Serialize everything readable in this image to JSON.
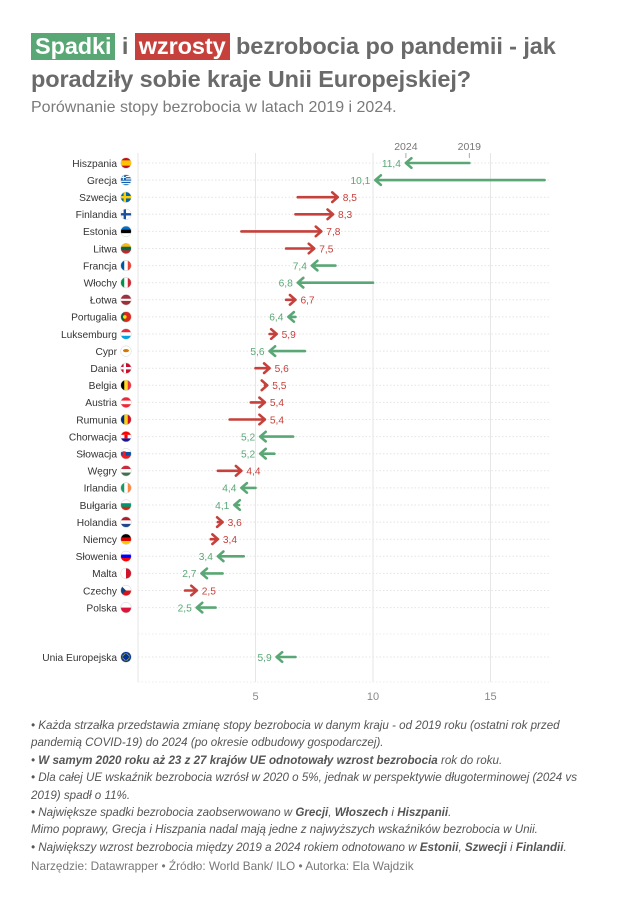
{
  "title": {
    "word_decrease": "Spadki",
    "connector": " i ",
    "word_increase": "wzrosty",
    "rest": " bezrobocia po pandemii - jak poradziły sobie kraje Unii Europejskiej?"
  },
  "subtitle": "Porównanie stopy bezrobocia w latach 2019 i 2024.",
  "colors": {
    "decrease": "#5aa776",
    "increase": "#c6413b",
    "text_gray": "#6a6a6a"
  },
  "chart_data": {
    "type": "arrow",
    "legend": {
      "start_label": "2019",
      "end_label": "2024"
    },
    "x_ticks": [
      5,
      10,
      15
    ],
    "xlim": [
      0,
      17.5
    ],
    "countries": [
      {
        "name": "Hiszpania",
        "flag": "ES",
        "v2019": 14.1,
        "v2024": 11.4,
        "label": "11,4"
      },
      {
        "name": "Grecja",
        "flag": "GR",
        "v2019": 17.3,
        "v2024": 10.1,
        "label": "10,1"
      },
      {
        "name": "Szwecja",
        "flag": "SE",
        "v2019": 6.8,
        "v2024": 8.5,
        "label": "8,5"
      },
      {
        "name": "Finlandia",
        "flag": "FI",
        "v2019": 6.7,
        "v2024": 8.3,
        "label": "8,3"
      },
      {
        "name": "Estonia",
        "flag": "EE",
        "v2019": 4.4,
        "v2024": 7.8,
        "label": "7,8"
      },
      {
        "name": "Litwa",
        "flag": "LT",
        "v2019": 6.3,
        "v2024": 7.5,
        "label": "7,5"
      },
      {
        "name": "Francja",
        "flag": "FR",
        "v2019": 8.4,
        "v2024": 7.4,
        "label": "7,4"
      },
      {
        "name": "Włochy",
        "flag": "IT",
        "v2019": 10.0,
        "v2024": 6.8,
        "label": "6,8"
      },
      {
        "name": "Łotwa",
        "flag": "LV",
        "v2019": 6.3,
        "v2024": 6.7,
        "label": "6,7"
      },
      {
        "name": "Portugalia",
        "flag": "PT",
        "v2019": 6.7,
        "v2024": 6.4,
        "label": "6,4"
      },
      {
        "name": "Luksemburg",
        "flag": "LU",
        "v2019": 5.6,
        "v2024": 5.9,
        "label": "5,9"
      },
      {
        "name": "Cypr",
        "flag": "CY",
        "v2019": 7.1,
        "v2024": 5.6,
        "label": "5,6"
      },
      {
        "name": "Dania",
        "flag": "DK",
        "v2019": 5.0,
        "v2024": 5.6,
        "label": "5,6"
      },
      {
        "name": "Belgia",
        "flag": "BE",
        "v2019": 5.4,
        "v2024": 5.5,
        "label": "5,5"
      },
      {
        "name": "Austria",
        "flag": "AT",
        "v2019": 4.8,
        "v2024": 5.4,
        "label": "5,4"
      },
      {
        "name": "Rumunia",
        "flag": "RO",
        "v2019": 3.9,
        "v2024": 5.4,
        "label": "5,4"
      },
      {
        "name": "Chorwacja",
        "flag": "HR",
        "v2019": 6.6,
        "v2024": 5.2,
        "label": "5,2"
      },
      {
        "name": "Słowacja",
        "flag": "SK",
        "v2019": 5.8,
        "v2024": 5.2,
        "label": "5,2"
      },
      {
        "name": "Węgry",
        "flag": "HU",
        "v2019": 3.4,
        "v2024": 4.4,
        "label": "4,4"
      },
      {
        "name": "Irlandia",
        "flag": "IE",
        "v2019": 5.0,
        "v2024": 4.4,
        "label": "4,4"
      },
      {
        "name": "Bułgaria",
        "flag": "BG",
        "v2019": 4.3,
        "v2024": 4.1,
        "label": "4,1"
      },
      {
        "name": "Holandia",
        "flag": "NL",
        "v2019": 3.4,
        "v2024": 3.6,
        "label": "3,6"
      },
      {
        "name": "Niemcy",
        "flag": "DE",
        "v2019": 3.1,
        "v2024": 3.4,
        "label": "3,4"
      },
      {
        "name": "Słowenia",
        "flag": "SI",
        "v2019": 4.5,
        "v2024": 3.4,
        "label": "3,4"
      },
      {
        "name": "Malta",
        "flag": "MT",
        "v2019": 3.6,
        "v2024": 2.7,
        "label": "2,7"
      },
      {
        "name": "Czechy",
        "flag": "CZ",
        "v2019": 2.0,
        "v2024": 2.5,
        "label": "2,5"
      },
      {
        "name": "Polska",
        "flag": "PL",
        "v2019": 3.3,
        "v2024": 2.5,
        "label": "2,5"
      }
    ],
    "eu": {
      "name": "Unia Europejska",
      "flag": "EU",
      "v2019": 6.7,
      "v2024": 5.9,
      "label": "5,9"
    }
  },
  "notes": [
    [
      {
        "t": "• Każda strzałka przedstawia zmianę stopy bezrobocia w danym kraju - od 2019 roku (ostatni rok przed pandemią COVID-19) do 2024 (po okresie odbudowy gospodarczej)."
      }
    ],
    [
      {
        "t": "• "
      },
      {
        "t": "W samym 2020 roku aż 23 z 27 krajów UE odnotowały wzrost bezrobocia",
        "b": true
      },
      {
        "t": " rok do roku."
      }
    ],
    [
      {
        "t": "• Dla całej UE wskaźnik bezrobocia wzrósł w 2020 o 5%, jednak w perspektywie długoterminowej (2024 vs 2019) spadł o 11%."
      }
    ],
    [
      {
        "t": "• Największe spadki bezrobocia zaobserwowano w "
      },
      {
        "t": "Grecji",
        "b": true
      },
      {
        "t": ", "
      },
      {
        "t": "Włoszech",
        "b": true
      },
      {
        "t": " i "
      },
      {
        "t": "Hiszpanii",
        "b": true
      },
      {
        "t": "."
      }
    ],
    [
      {
        "t": "Mimo poprawy, Grecja i Hiszpania nadal mają jedne z najwyższych wskaźników bezrobocia w Unii."
      }
    ],
    [
      {
        "t": "• Największy wzrost bezrobocia między 2019 a 2024 rokiem odnotowano w "
      },
      {
        "t": "Estonii",
        "b": true
      },
      {
        "t": ", "
      },
      {
        "t": "Szwecji",
        "b": true
      },
      {
        "t": " i "
      },
      {
        "t": "Finlandii",
        "b": true
      },
      {
        "t": "."
      }
    ]
  ],
  "footer": "Narzędzie: Datawrapper • Źródło: World Bank/ ILO • Autorka: Ela Wajdzik"
}
